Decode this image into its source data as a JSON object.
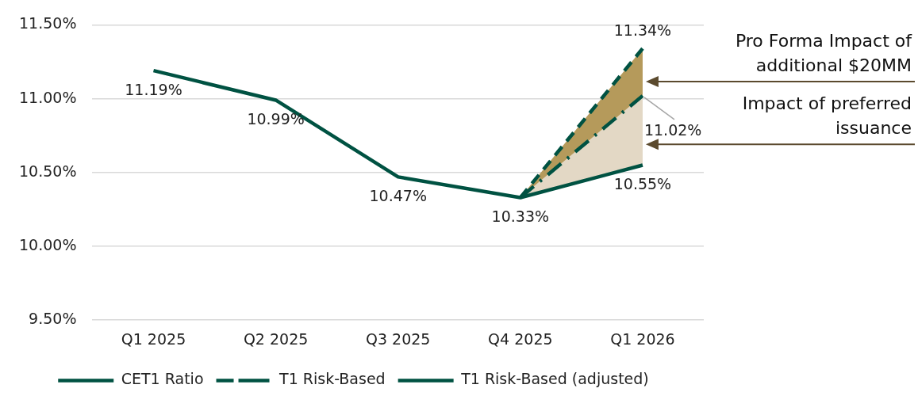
{
  "chart_data": {
    "type": "line",
    "categories": [
      "Q1 2025",
      "Q2 2025",
      "Q3 2025",
      "Q4 2025",
      "Q1 2026"
    ],
    "series": [
      {
        "name": "CET1 Ratio",
        "color": "#005242",
        "line_style": "solid",
        "values": [
          11.19,
          10.99,
          10.47,
          10.33,
          10.55
        ],
        "value_labels": [
          "11.19%",
          "10.99%",
          "10.47%",
          "10.33%",
          "10.55%"
        ]
      },
      {
        "name": "T1 Risk-Based",
        "color": "#005242",
        "line_style": "dashdot",
        "values": [
          null,
          null,
          null,
          10.33,
          11.02
        ],
        "value_labels": [
          null,
          null,
          null,
          null,
          "11.02%"
        ],
        "lower": [
          null,
          null,
          null,
          10.33,
          10.55
        ],
        "upper": [
          null,
          null,
          null,
          10.33,
          11.02
        ]
      },
      {
        "name": "T1 Risk-Based (adjusted)",
        "color": "#005242",
        "line_style": "dashed",
        "values": [
          null,
          null,
          null,
          10.33,
          11.34
        ],
        "value_labels": [
          null,
          null,
          null,
          null,
          "11.34%"
        ],
        "lower": [
          null,
          null,
          null,
          10.33,
          11.02
        ],
        "upper": [
          null,
          null,
          null,
          10.33,
          11.34
        ]
      }
    ],
    "ylim": [
      9.5,
      11.5
    ],
    "yticks": [
      {
        "value": 9.5,
        "label": "9.50%"
      },
      {
        "value": 10,
        "label": "10.00%"
      },
      {
        "value": 10.5,
        "label": "10.50%"
      },
      {
        "value": 11,
        "label": "11.00%"
      },
      {
        "value": 11.5,
        "label": "11.50%"
      }
    ],
    "grid": "y",
    "legend": "bottom",
    "marker": "none",
    "annotations": [
      "Pro Forma Impact of additional $20MM",
      "Impact of preferred issuance"
    ]
  }
}
